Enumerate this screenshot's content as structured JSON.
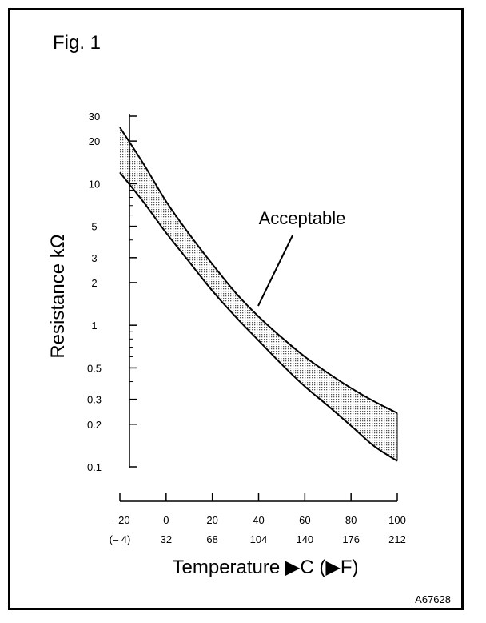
{
  "figure": {
    "label": "Fig. 1",
    "code": "A67628"
  },
  "chart_data": {
    "type": "area",
    "ylabel": "Resistance kΩ",
    "xlabel": "Temperature ▶C (▶F)",
    "yscale": "log",
    "ylim": [
      0.1,
      30
    ],
    "xlim": [
      -20,
      100
    ],
    "y_ticks": [
      {
        "value": 30,
        "label": "30"
      },
      {
        "value": 20,
        "label": "20"
      },
      {
        "value": 10,
        "label": "10"
      },
      {
        "value": 5,
        "label": "5"
      },
      {
        "value": 3,
        "label": "3"
      },
      {
        "value": 2,
        "label": "2"
      },
      {
        "value": 1,
        "label": "1"
      },
      {
        "value": 0.5,
        "label": "0.5"
      },
      {
        "value": 0.3,
        "label": "0.3"
      },
      {
        "value": 0.2,
        "label": "0.2"
      },
      {
        "value": 0.1,
        "label": "0.1"
      }
    ],
    "y_minor_ticks": [
      9,
      8,
      7,
      6,
      4,
      0.9,
      0.8,
      0.7,
      0.6,
      0.4
    ],
    "x_ticks": [
      {
        "value": -20,
        "label": "– 20",
        "label_f": "(– 4)"
      },
      {
        "value": 0,
        "label": "0",
        "label_f": "32"
      },
      {
        "value": 20,
        "label": "20",
        "label_f": "68"
      },
      {
        "value": 40,
        "label": "40",
        "label_f": "104"
      },
      {
        "value": 60,
        "label": "60",
        "label_f": "140"
      },
      {
        "value": 80,
        "label": "80",
        "label_f": "176"
      },
      {
        "value": 100,
        "label": "100",
        "label_f": "212"
      }
    ],
    "band": {
      "label": "Acceptable",
      "fill": "#b0b0b0",
      "upper": {
        "x": [
          -20,
          -10,
          0,
          10,
          20,
          30,
          40,
          50,
          60,
          70,
          80,
          90,
          100
        ],
        "y": [
          25,
          14,
          7.5,
          4.4,
          2.7,
          1.7,
          1.15,
          0.82,
          0.6,
          0.46,
          0.36,
          0.29,
          0.24
        ]
      },
      "lower": {
        "x": [
          -20,
          -10,
          0,
          10,
          20,
          30,
          40,
          50,
          60,
          70,
          80,
          90,
          100
        ],
        "y": [
          12,
          7.5,
          4.5,
          2.8,
          1.75,
          1.15,
          0.78,
          0.53,
          0.37,
          0.27,
          0.195,
          0.14,
          0.11
        ]
      }
    },
    "grid": false,
    "legend": "none"
  }
}
